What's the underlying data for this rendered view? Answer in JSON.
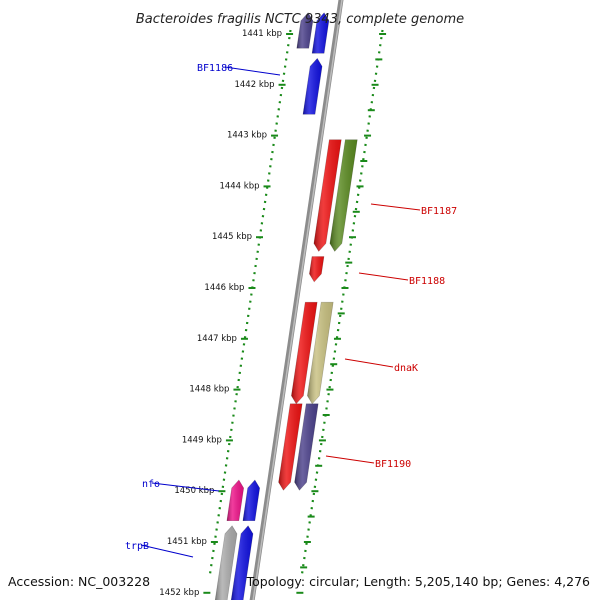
{
  "title": "Bacteroides fragilis NCTC 9343, complete genome",
  "accession": "Accession: NC_003228",
  "summary": "Topology: circular; Length: 5,205,140 bp; Genes: 4,276",
  "colors": {
    "backbone": "#8c8c8c",
    "tick_green": "#1a8a1a",
    "label_forward": "#0000cc",
    "label_reverse": "#cc0000"
  },
  "ruler": {
    "ticks": [
      "1441 kbp",
      "1442 kbp",
      "1443 kbp",
      "1444 kbp",
      "1445 kbp",
      "1446 kbp",
      "1447 kbp",
      "1448 kbp",
      "1449 kbp",
      "1450 kbp",
      "1451 kbp",
      "1452 kbp"
    ]
  },
  "genes": [
    {
      "name": "",
      "strand": "forward",
      "color": "#4a3f8a",
      "start_kbp": 1440.6,
      "end_kbp": 1441.3
    },
    {
      "name": "",
      "strand": "forward",
      "color": "#1010e0",
      "start_kbp": 1440.6,
      "end_kbp": 1441.4
    },
    {
      "name": "BF1186",
      "strand": "forward",
      "color": "#1010e0",
      "start_kbp": 1441.5,
      "end_kbp": 1442.6
    },
    {
      "name": "BF1187",
      "strand": "reverse",
      "color": "#ee1111",
      "start_kbp": 1443.1,
      "end_kbp": 1445.3
    },
    {
      "name": "",
      "strand": "reverse",
      "color": "#5a8a20",
      "start_kbp": 1443.1,
      "end_kbp": 1445.3
    },
    {
      "name": "BF1188",
      "strand": "reverse",
      "color": "#ee1111",
      "start_kbp": 1445.4,
      "end_kbp": 1445.9
    },
    {
      "name": "dnaK",
      "strand": "reverse",
      "color": "#ee1111",
      "start_kbp": 1446.3,
      "end_kbp": 1448.3
    },
    {
      "name": "",
      "strand": "reverse",
      "color": "#c8c080",
      "start_kbp": 1446.3,
      "end_kbp": 1448.3
    },
    {
      "name": "BF1190",
      "strand": "reverse",
      "color": "#ee1111",
      "start_kbp": 1448.3,
      "end_kbp": 1450.0
    },
    {
      "name": "",
      "strand": "reverse",
      "color": "#4a3f8a",
      "start_kbp": 1448.3,
      "end_kbp": 1450.0
    },
    {
      "name": "nfo",
      "strand": "forward",
      "color": "#ee1188",
      "start_kbp": 1449.8,
      "end_kbp": 1450.6
    },
    {
      "name": "",
      "strand": "forward",
      "color": "#1010e0",
      "start_kbp": 1449.8,
      "end_kbp": 1450.6
    },
    {
      "name": "trpB",
      "strand": "forward",
      "color": "#aaaaaa",
      "start_kbp": 1450.7,
      "end_kbp": 1452.2
    },
    {
      "name": "",
      "strand": "forward",
      "color": "#1010e0",
      "start_kbp": 1450.7,
      "end_kbp": 1452.2
    }
  ]
}
